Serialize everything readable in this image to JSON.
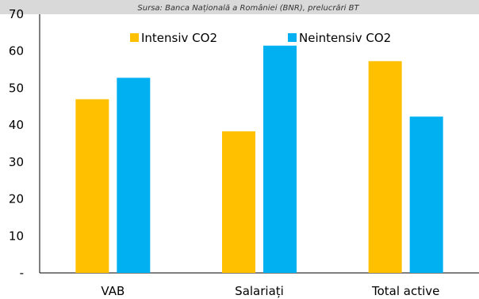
{
  "source": "Sursa: Banca Națională a României (BNR), prelucrări BT",
  "chart_data": {
    "type": "bar",
    "categories": [
      "VAB",
      "Salariați",
      "Total active"
    ],
    "series": [
      {
        "name": "Intensiv CO2",
        "values": [
          47,
          38.3,
          57.3
        ],
        "color": "#FFC000"
      },
      {
        "name": "Neintensiv CO2",
        "values": [
          52.8,
          61.5,
          42.3
        ],
        "color": "#00B0F0"
      }
    ],
    "ylim": [
      0,
      70
    ],
    "yticks": [
      70,
      60,
      50,
      40,
      30,
      20,
      10
    ],
    "zero_label": "-",
    "grid": false,
    "legend_position": "top"
  }
}
